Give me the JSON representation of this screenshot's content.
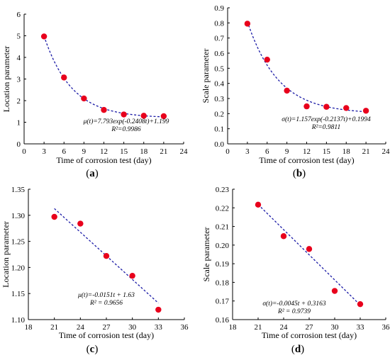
{
  "figure": {
    "panels": [
      {
        "label": "(a)",
        "label_letter": "a",
        "equation": "μ(t)=7.793exp(-0.2408t)+1.199",
        "r2": "R²=0.9986"
      },
      {
        "label": "(b)",
        "label_letter": "b",
        "equation": "σ(t)=1.157exp(-0.2137t)+0.1994",
        "r2": "R²=0.9811"
      },
      {
        "label": "(c)",
        "label_letter": "c",
        "equation": "μ(t)=-0.0151t + 1.63",
        "r2": "R² = 0.9656"
      },
      {
        "label": "(d)",
        "label_letter": "d",
        "equation": "σ(t)=-0.0045t + 0.3163",
        "r2": "R² = 0.9739"
      }
    ]
  },
  "chart_data": [
    {
      "type": "scatter",
      "panel_label": "(a)",
      "xlabel": "Time of corrosion test (day)",
      "ylabel": "Location parameter",
      "xlim": [
        0,
        24
      ],
      "ylim": [
        0,
        6
      ],
      "xticks": [
        0,
        3,
        6,
        9,
        12,
        15,
        18,
        21,
        24
      ],
      "yticks": [
        0,
        1,
        2,
        3,
        4,
        5,
        6
      ],
      "x": [
        3,
        6,
        9,
        12,
        15,
        18,
        21
      ],
      "y": [
        4.97,
        3.07,
        2.1,
        1.57,
        1.36,
        1.3,
        1.28
      ],
      "fit": {
        "kind": "exponential",
        "a": 7.793,
        "b": -0.2408,
        "c": 1.199
      },
      "marker_color": "#e8001c",
      "fit_color": "#1a1aa6",
      "equation": "μ(t)=7.793exp(-0.2408t)+1.199",
      "r2": "R²=0.9986"
    },
    {
      "type": "scatter",
      "panel_label": "(b)",
      "xlabel": "Time of corrosion test (day)",
      "ylabel": "Scale parameter",
      "xlim": [
        0,
        24
      ],
      "ylim": [
        0,
        0.9
      ],
      "xticks": [
        0,
        3,
        6,
        9,
        12,
        15,
        18,
        21,
        24
      ],
      "yticks": [
        0,
        0.1,
        0.2,
        0.3,
        0.4,
        0.5,
        0.6,
        0.7,
        0.8,
        0.9
      ],
      "x": [
        3,
        6,
        9,
        12,
        15,
        18,
        21
      ],
      "y": [
        0.795,
        0.557,
        0.352,
        0.248,
        0.245,
        0.237,
        0.219
      ],
      "fit": {
        "kind": "exponential",
        "a": 1.157,
        "b": -0.2137,
        "c": 0.1994
      },
      "marker_color": "#e8001c",
      "fit_color": "#1a1aa6",
      "equation": "σ(t)=1.157exp(-0.2137t)+0.1994",
      "r2": "R²=0.9811"
    },
    {
      "type": "scatter",
      "panel_label": "(c)",
      "xlabel": "Time of corrosion test (day)",
      "ylabel": "Location parameter",
      "xlim": [
        18,
        36
      ],
      "ylim": [
        1.1,
        1.35
      ],
      "xticks": [
        18,
        21,
        24,
        27,
        30,
        33,
        36
      ],
      "yticks": [
        1.1,
        1.15,
        1.2,
        1.25,
        1.3,
        1.35
      ],
      "x": [
        21,
        24,
        27,
        30,
        33
      ],
      "y": [
        1.297,
        1.284,
        1.222,
        1.184,
        1.119
      ],
      "fit": {
        "kind": "linear",
        "m": -0.0151,
        "c": 1.63
      },
      "marker_color": "#e8001c",
      "fit_color": "#1a1aa6",
      "equation": "μ(t)=-0.0151t + 1.63",
      "r2": "R² = 0.9656"
    },
    {
      "type": "scatter",
      "panel_label": "(d)",
      "xlabel": "Time of corrosion test (day)",
      "ylabel": "Scale parameter",
      "xlim": [
        18,
        36
      ],
      "ylim": [
        0.16,
        0.23
      ],
      "xticks": [
        18,
        21,
        24,
        27,
        30,
        33,
        36
      ],
      "yticks": [
        0.16,
        0.17,
        0.18,
        0.19,
        0.2,
        0.21,
        0.22,
        0.23
      ],
      "x": [
        21,
        24,
        27,
        30,
        33
      ],
      "y": [
        0.2217,
        0.2048,
        0.1979,
        0.1754,
        0.1683
      ],
      "fit": {
        "kind": "linear",
        "m": -0.0045,
        "c": 0.3163
      },
      "marker_color": "#e8001c",
      "fit_color": "#1a1aa6",
      "equation": "σ(t)=-0.0045t + 0.3163",
      "r2": "R² = 0.9739"
    }
  ]
}
